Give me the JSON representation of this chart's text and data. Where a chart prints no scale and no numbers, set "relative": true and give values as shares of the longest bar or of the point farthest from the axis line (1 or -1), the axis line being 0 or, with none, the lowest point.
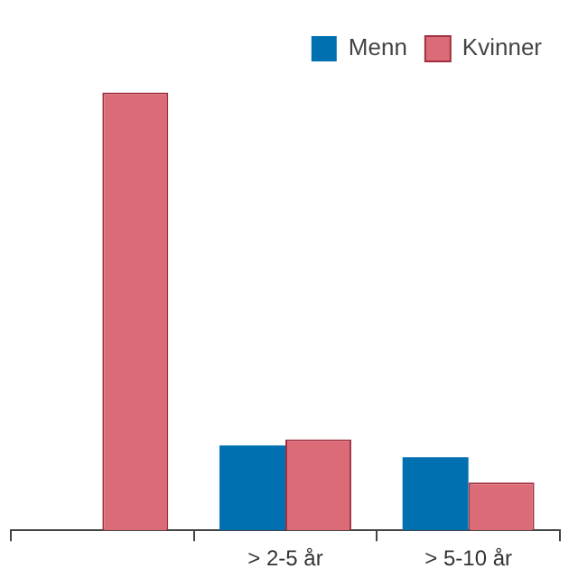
{
  "chart_data": {
    "type": "bar",
    "relative": true,
    "categories": [
      null,
      "> 2-5 år",
      "> 5-10 år"
    ],
    "series": [
      {
        "name": "Menn",
        "color": "#0070b0",
        "values": [
          null,
          0.194,
          0.167
        ]
      },
      {
        "name": "Kvinner",
        "color": "#dc6b78",
        "values": [
          1,
          0.208,
          0.109
        ]
      }
    ],
    "legend": "top right",
    "grid": false
  }
}
